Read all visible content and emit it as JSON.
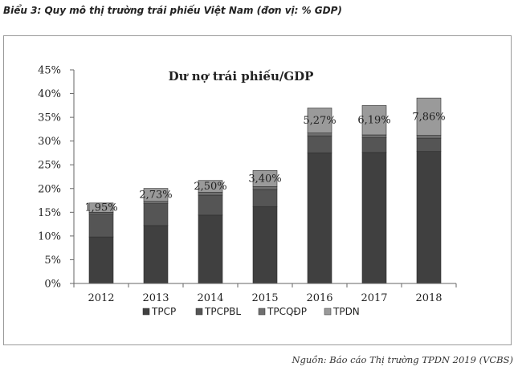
{
  "caption": "Biểu 3: Quy mô thị trường trái phiếu Việt Nam (đơn vị: % GDP)",
  "source": "Nguồn: Báo cáo Thị trường TPDN 2019 (VCBS)",
  "chart_data": {
    "type": "bar",
    "stacked": true,
    "title": "Dư nợ trái phiếu/GDP",
    "xlabel": "",
    "ylabel": "",
    "ylim": [
      0,
      45
    ],
    "yticks": [
      "0%",
      "5%",
      "10%",
      "15%",
      "20%",
      "25%",
      "30%",
      "35%",
      "40%",
      "45%"
    ],
    "grid": false,
    "legend_position": "bottom",
    "categories": [
      "2012",
      "2013",
      "2014",
      "2015",
      "2016",
      "2017",
      "2018"
    ],
    "series": [
      {
        "name": "TPCP",
        "color": "#404040",
        "values": [
          9.8,
          12.2,
          14.4,
          16.2,
          27.5,
          27.6,
          27.8
        ]
      },
      {
        "name": "TPCPBL",
        "color": "#555555",
        "values": [
          4.8,
          4.6,
          4.2,
          3.6,
          3.6,
          3.1,
          2.8
        ]
      },
      {
        "name": "TPCQĐP",
        "color": "#6f6f6f",
        "values": [
          0.4,
          0.5,
          0.6,
          0.6,
          0.6,
          0.6,
          0.6
        ]
      },
      {
        "name": "TPDN",
        "color": "#9a9a9a",
        "values": [
          1.95,
          2.73,
          2.5,
          3.4,
          5.27,
          6.19,
          7.86
        ]
      }
    ],
    "data_labels": [
      "1,95%",
      "2,73%",
      "2,50%",
      "3,40%",
      "5,27%",
      "6,19%",
      "7,86%"
    ]
  }
}
